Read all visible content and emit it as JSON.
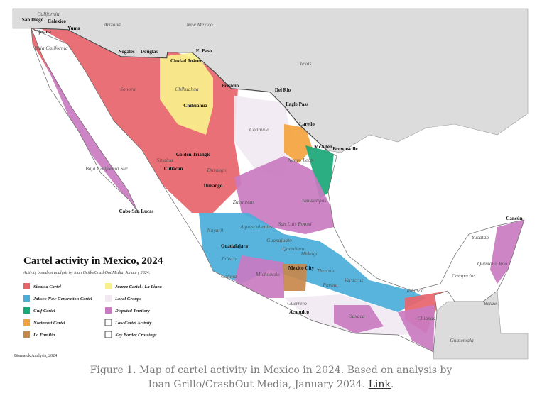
{
  "map": {
    "title": "Cartel activity in Mexico, 2024",
    "subtitle": "Activity based on analysis by Ioan Grillo/CrashOut Media, January 2024.",
    "legend": [
      {
        "label": "Sinaloa Cartel",
        "color": "#e8646b"
      },
      {
        "label": "Jalisco New Generation Cartel",
        "color": "#4aaed9"
      },
      {
        "label": "Gulf Cartel",
        "color": "#19a877"
      },
      {
        "label": "Northeast Cartel",
        "color": "#f3a33e"
      },
      {
        "label": "La Familia",
        "color": "#c7884b"
      },
      {
        "label": "Juarez Cartel / La Linea",
        "color": "#f8f08c"
      },
      {
        "label": "Local Groups",
        "color": "#f2e9f2"
      },
      {
        "label": "Disputed Territory",
        "color": "#c97bc1"
      },
      {
        "label": "Low Cartel Activity",
        "color": "#ffffff"
      },
      {
        "label": "Key Border Crossings",
        "color": "#ffffff"
      }
    ],
    "places": [
      "California",
      "Arizona",
      "New Mexico",
      "Texas",
      "San Diego",
      "Calexico",
      "Yuma",
      "Tijuana",
      "Baja California",
      "Nogales",
      "Douglas",
      "El Paso",
      "Ciudad Juárez",
      "Chihuahua",
      "Chihuahua",
      "Presidio",
      "Del Rio",
      "Eagle Pass",
      "Laredo",
      "McAllen",
      "Brownsville",
      "Sonora",
      "Coahuila",
      "Nuevo León",
      "Tamaulipas",
      "Sinaloa",
      "Golden Triangle",
      "Culiacán",
      "Durango",
      "Durango",
      "Baja California Sur",
      "Cabo San Lucas",
      "Zacatecas",
      "San Luis Potosí",
      "Nayarit",
      "Aguascalientes",
      "Guadalajara",
      "Jalisco",
      "Guanajuato",
      "Querétaro",
      "Hidalgo",
      "Colima",
      "Michoacán",
      "Mexico City",
      "Tlaxcala",
      "Puebla",
      "Veracruz",
      "Guerrero",
      "Acapulco",
      "Oaxaca",
      "Tabasco",
      "Chiapas",
      "Campeche",
      "Yucatán",
      "Quintana Roo",
      "Cancún",
      "Belize",
      "Guatemala"
    ],
    "credit": "Bismarck Analysis, 2024"
  },
  "caption": {
    "text": "Figure 1. Map of cartel activity in Mexico in 2024. Based on analysis by Ioan Grillo/CrashOut Media, January 2024.",
    "link": "Link",
    "end": "."
  }
}
